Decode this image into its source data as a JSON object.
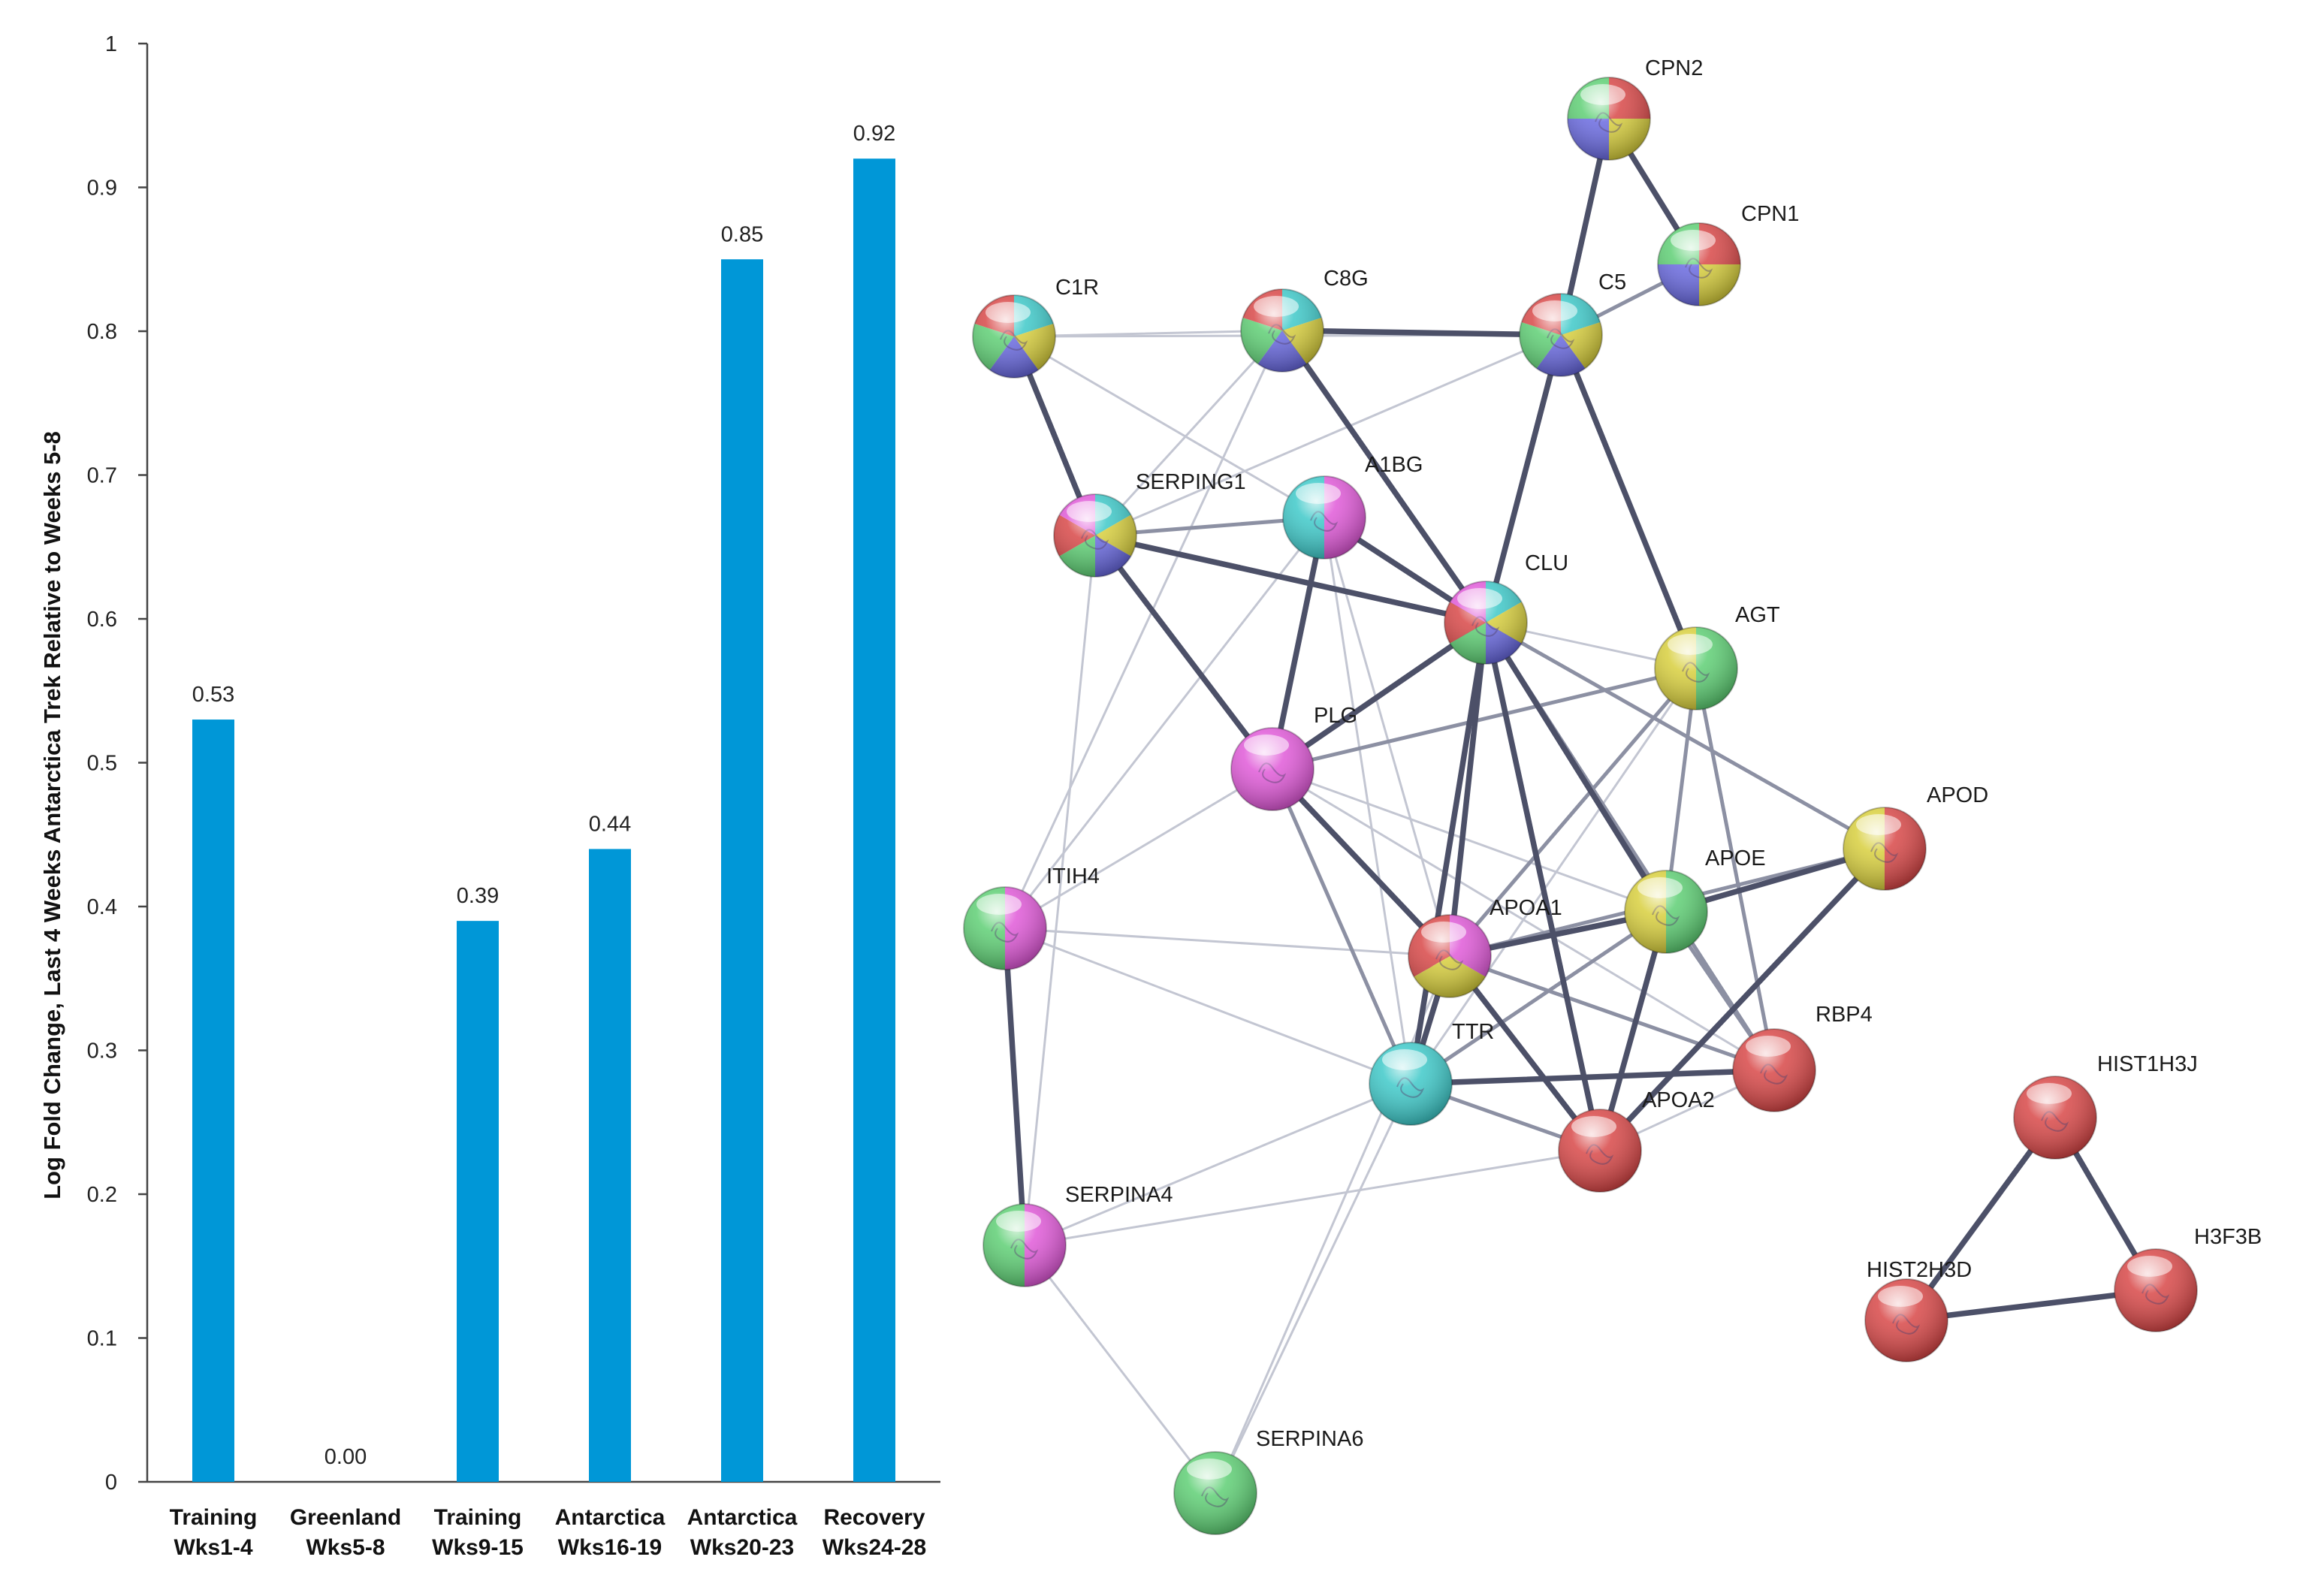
{
  "chart_data": [
    {
      "type": "bar",
      "title": "",
      "xlabel": "",
      "ylabel": "Log Fold Change, Last 4 Weeks Antarctica Trek Relative to Weeks 5-8",
      "categories": [
        [
          "Training",
          "Wks1-4"
        ],
        [
          "Greenland",
          "Wks5-8"
        ],
        [
          "Training",
          "Wks9-15"
        ],
        [
          "Antarctica",
          "Wks16-19"
        ],
        [
          "Antarctica",
          "Wks20-23"
        ],
        [
          "Recovery",
          "Wks24-28"
        ]
      ],
      "values": [
        0.53,
        0.0,
        0.39,
        0.44,
        0.85,
        0.92
      ],
      "value_labels": [
        "0.53",
        "0.00",
        "0.39",
        "0.44",
        "0.85",
        "0.92"
      ],
      "ylim": [
        0,
        1
      ],
      "yticks": [
        "0",
        "0.1",
        "0.2",
        "0.3",
        "0.4",
        "0.5",
        "0.6",
        "0.7",
        "0.8",
        "0.9",
        "1"
      ],
      "bar_color": "#0097d7",
      "grid": false
    },
    {
      "type": "network",
      "nodes": [
        {
          "id": "CPN2",
          "colors": [
            "#d84848",
            "#d8cf3e",
            "#6a6ae0",
            "#5fcf75"
          ]
        },
        {
          "id": "CPN1",
          "colors": [
            "#d84848",
            "#d8cf3e",
            "#6a6ae0",
            "#5fcf75"
          ]
        },
        {
          "id": "C1R",
          "colors": [
            "#3fc9c9",
            "#d8cf3e",
            "#6a6ae0",
            "#5fcf75",
            "#d84848"
          ]
        },
        {
          "id": "C8G",
          "colors": [
            "#3fc9c9",
            "#d8cf3e",
            "#6a6ae0",
            "#5fcf75",
            "#d84848"
          ]
        },
        {
          "id": "C5",
          "colors": [
            "#3fc9c9",
            "#d8cf3e",
            "#6a6ae0",
            "#5fcf75",
            "#d84848"
          ]
        },
        {
          "id": "SERPING1",
          "colors": [
            "#3fc9c9",
            "#d8cf3e",
            "#6a6ae0",
            "#5fcf75",
            "#d84848",
            "#e05ad8"
          ]
        },
        {
          "id": "A1BG",
          "colors": [
            "#e05ad8",
            "#3fc9c9"
          ]
        },
        {
          "id": "CLU",
          "colors": [
            "#3fc9c9",
            "#d8cf3e",
            "#6a6ae0",
            "#5fcf75",
            "#d84848",
            "#e05ad8"
          ]
        },
        {
          "id": "AGT",
          "colors": [
            "#5fcf75",
            "#d8cf3e"
          ]
        },
        {
          "id": "PLG",
          "colors": [
            "#e05ad8"
          ]
        },
        {
          "id": "APOD",
          "colors": [
            "#d84848",
            "#d8cf3e"
          ]
        },
        {
          "id": "ITIH4",
          "colors": [
            "#e05ad8",
            "#5fcf75"
          ]
        },
        {
          "id": "APOE",
          "colors": [
            "#5fcf75",
            "#d8cf3e"
          ]
        },
        {
          "id": "APOA1",
          "colors": [
            "#e05ad8",
            "#d8cf3e",
            "#d84848"
          ]
        },
        {
          "id": "RBP4",
          "colors": [
            "#d84848"
          ]
        },
        {
          "id": "TTR",
          "colors": [
            "#3fc9c9"
          ]
        },
        {
          "id": "APOA2",
          "colors": [
            "#d84848"
          ]
        },
        {
          "id": "SERPINA4",
          "colors": [
            "#e05ad8",
            "#5fcf75"
          ]
        },
        {
          "id": "SERPINA6",
          "colors": [
            "#5fcf75"
          ]
        },
        {
          "id": "HIST1H3J",
          "colors": [
            "#d84848"
          ]
        },
        {
          "id": "HIST2H3D",
          "colors": [
            "#d84848"
          ]
        },
        {
          "id": "H3F3B",
          "colors": [
            "#d84848"
          ]
        }
      ],
      "edges": [
        [
          "CPN2",
          "C5",
          3
        ],
        [
          "CPN2",
          "CPN1",
          3
        ],
        [
          "CPN1",
          "C5",
          2
        ],
        [
          "C1R",
          "C8G",
          1
        ],
        [
          "C1R",
          "C5",
          1
        ],
        [
          "C1R",
          "SERPING1",
          3
        ],
        [
          "C1R",
          "A1BG",
          1
        ],
        [
          "C8G",
          "C5",
          3
        ],
        [
          "C8G",
          "CLU",
          3
        ],
        [
          "C8G",
          "SERPING1",
          1
        ],
        [
          "C8G",
          "ITIH4",
          1
        ],
        [
          "C5",
          "CLU",
          3
        ],
        [
          "C5",
          "AGT",
          3
        ],
        [
          "C5",
          "SERPING1",
          1
        ],
        [
          "SERPING1",
          "A1BG",
          2
        ],
        [
          "SERPING1",
          "CLU",
          3
        ],
        [
          "SERPING1",
          "PLG",
          3
        ],
        [
          "SERPING1",
          "SERPINA4",
          1
        ],
        [
          "A1BG",
          "CLU",
          3
        ],
        [
          "A1BG",
          "PLG",
          3
        ],
        [
          "A1BG",
          "ITIH4",
          1
        ],
        [
          "A1BG",
          "APOA1",
          1
        ],
        [
          "A1BG",
          "TTR",
          1
        ],
        [
          "CLU",
          "PLG",
          3
        ],
        [
          "CLU",
          "AGT",
          1
        ],
        [
          "CLU",
          "APOE",
          3
        ],
        [
          "CLU",
          "APOA1",
          3
        ],
        [
          "CLU",
          "TTR",
          3
        ],
        [
          "CLU",
          "APOA2",
          3
        ],
        [
          "CLU",
          "RBP4",
          2
        ],
        [
          "CLU",
          "APOD",
          2
        ],
        [
          "AGT",
          "APOE",
          2
        ],
        [
          "AGT",
          "APOA1",
          2
        ],
        [
          "AGT",
          "RBP4",
          2
        ],
        [
          "AGT",
          "TTR",
          1
        ],
        [
          "AGT",
          "PLG",
          2
        ],
        [
          "PLG",
          "ITIH4",
          1
        ],
        [
          "PLG",
          "APOA1",
          3
        ],
        [
          "PLG",
          "TTR",
          2
        ],
        [
          "PLG",
          "APOE",
          1
        ],
        [
          "PLG",
          "RBP4",
          1
        ],
        [
          "APOD",
          "APOE",
          3
        ],
        [
          "APOD",
          "APOA1",
          2
        ],
        [
          "APOD",
          "APOA2",
          3
        ],
        [
          "ITIH4",
          "SERPINA4",
          3
        ],
        [
          "ITIH4",
          "APOA1",
          1
        ],
        [
          "ITIH4",
          "TTR",
          1
        ],
        [
          "APOE",
          "APOA1",
          3
        ],
        [
          "APOE",
          "TTR",
          2
        ],
        [
          "APOE",
          "APOA2",
          3
        ],
        [
          "APOE",
          "RBP4",
          2
        ],
        [
          "APOA1",
          "TTR",
          3
        ],
        [
          "APOA1",
          "APOA2",
          3
        ],
        [
          "APOA1",
          "RBP4",
          2
        ],
        [
          "APOA1",
          "SERPINA6",
          1
        ],
        [
          "TTR",
          "RBP4",
          3
        ],
        [
          "TTR",
          "APOA2",
          2
        ],
        [
          "TTR",
          "SERPINA6",
          1
        ],
        [
          "TTR",
          "SERPINA4",
          1
        ],
        [
          "APOA2",
          "SERPINA4",
          1
        ],
        [
          "APOA2",
          "RBP4",
          1
        ],
        [
          "SERPINA4",
          "SERPINA6",
          1
        ],
        [
          "HIST1H3J",
          "HIST2H3D",
          3
        ],
        [
          "HIST1H3J",
          "H3F3B",
          3
        ],
        [
          "HIST2H3D",
          "H3F3B",
          3
        ]
      ]
    }
  ]
}
